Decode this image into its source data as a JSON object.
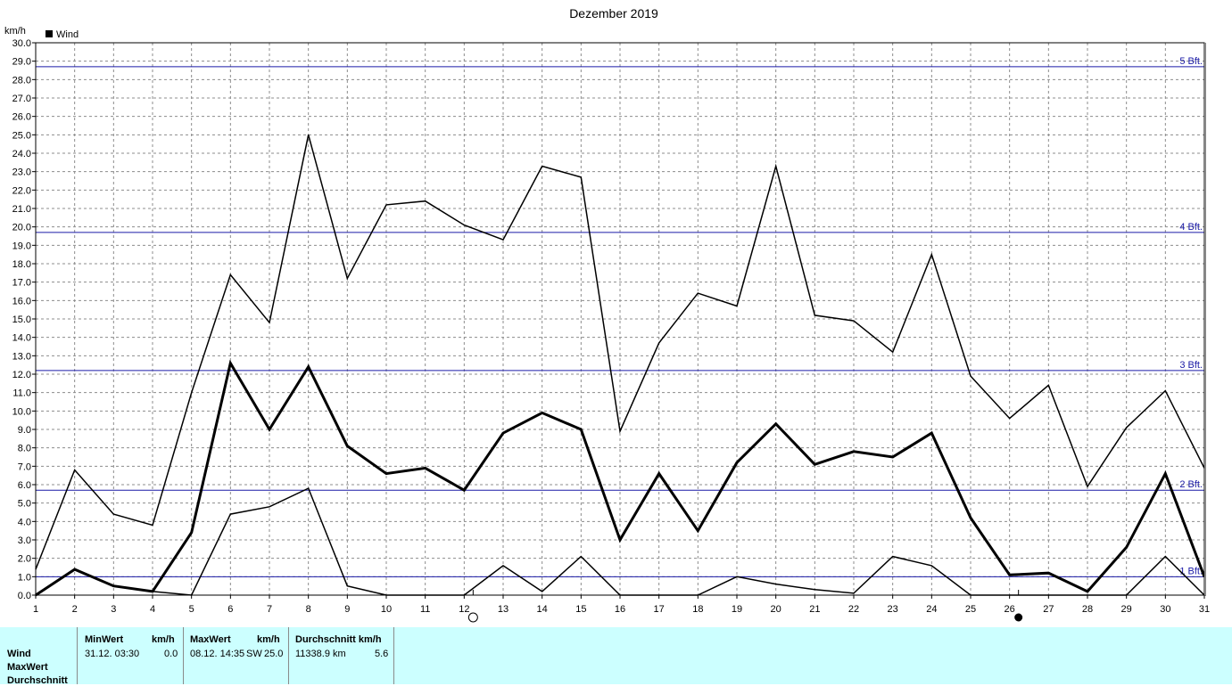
{
  "chart_data": {
    "type": "line",
    "title": "Dezember 2019",
    "ylabel": "km/h",
    "ylim": [
      0,
      30
    ],
    "y_ticks": [
      "0.0",
      "1.0",
      "2.0",
      "3.0",
      "4.0",
      "5.0",
      "6.0",
      "7.0",
      "8.0",
      "9.0",
      "10.0",
      "11.0",
      "12.0",
      "13.0",
      "14.0",
      "15.0",
      "16.0",
      "17.0",
      "18.0",
      "19.0",
      "20.0",
      "21.0",
      "22.0",
      "23.0",
      "24.0",
      "25.0",
      "26.0",
      "27.0",
      "28.0",
      "29.0",
      "30.0"
    ],
    "x": [
      1,
      2,
      3,
      4,
      5,
      6,
      7,
      8,
      9,
      10,
      11,
      12,
      13,
      14,
      15,
      16,
      17,
      18,
      19,
      20,
      21,
      22,
      23,
      24,
      25,
      26,
      27,
      28,
      29,
      30,
      31
    ],
    "grid": true,
    "legend": {
      "position": "top-left",
      "entries": [
        "Wind"
      ]
    },
    "series": [
      {
        "values": [
          1.4,
          6.8,
          4.4,
          3.8,
          11.0,
          17.4,
          14.8,
          25.0,
          17.2,
          21.2,
          21.4,
          20.1,
          19.3,
          23.3,
          22.7,
          8.9,
          13.7,
          16.4,
          15.7,
          23.3,
          15.2,
          14.9,
          13.2,
          18.5,
          11.9,
          9.6,
          11.4,
          5.9,
          9.1,
          11.1,
          6.9
        ],
        "color": "#000000",
        "width": 1.5
      },
      {
        "values": [
          0.0,
          1.4,
          0.5,
          0.2,
          3.4,
          12.6,
          9.0,
          12.4,
          8.1,
          6.6,
          6.9,
          5.7,
          8.8,
          9.9,
          9.0,
          3.0,
          6.6,
          3.5,
          7.2,
          9.3,
          7.1,
          7.8,
          7.5,
          8.8,
          4.2,
          1.1,
          1.2,
          0.2,
          2.6,
          6.6,
          1.0
        ],
        "color": "#000000",
        "width": 3
      },
      {
        "values": [
          0.0,
          1.4,
          0.5,
          0.2,
          0.0,
          4.4,
          4.8,
          5.8,
          0.5,
          0.0,
          0.0,
          0.0,
          1.6,
          0.2,
          2.1,
          0.0,
          0.0,
          0.0,
          1.0,
          0.6,
          0.3,
          0.1,
          2.1,
          1.6,
          0.0,
          0.0,
          0.0,
          0.0,
          0.0,
          2.1,
          0.0
        ],
        "color": "#000000",
        "width": 1.5
      }
    ],
    "reference_lines": [
      {
        "label": "1 Bft.",
        "value": 1.0,
        "color": "#1a1aa6"
      },
      {
        "label": "2 Bft.",
        "value": 5.7,
        "color": "#1a1aa6"
      },
      {
        "label": "3 Bft.",
        "value": 12.2,
        "color": "#1a1aa6"
      },
      {
        "label": "4 Bft.",
        "value": 19.7,
        "color": "#1a1aa6"
      },
      {
        "label": "5 Bft.",
        "value": 28.7,
        "color": "#1a1aa6"
      }
    ],
    "moon_phases": [
      {
        "day": 12,
        "phase": "full"
      },
      {
        "day": 26,
        "phase": "new"
      }
    ]
  },
  "summary": {
    "row_labels": [
      "Wind",
      "MaxWert",
      "Durchschnitt"
    ],
    "min": {
      "header": "MinWert",
      "unit": "km/h",
      "time": "31.12.  03:30",
      "value": "0.0"
    },
    "max": {
      "header": "MaxWert",
      "unit": "km/h",
      "time": "08.12.  14:35",
      "dir": "SW",
      "value": "25.0"
    },
    "avg": {
      "header": "Durchschnitt km/h",
      "distance": "11338.9 km",
      "value": "5.6"
    }
  }
}
